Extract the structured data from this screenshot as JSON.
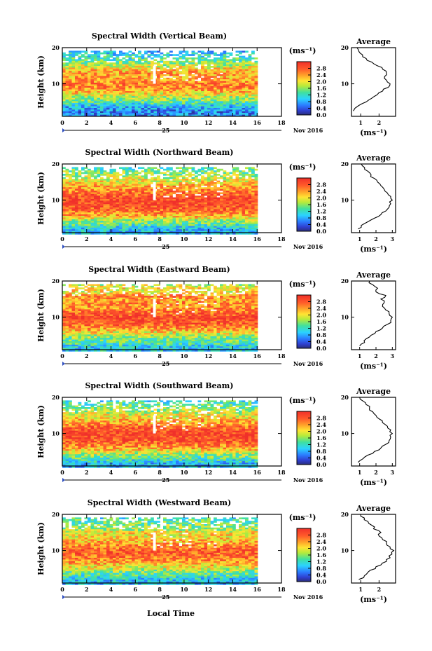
{
  "figure": {
    "xlabel": "Local Time",
    "day_label": "25",
    "month_year_label": "Nov 2016",
    "colorbar_unit": "(ms⁻¹)",
    "average_unit": "(ms⁻¹)",
    "average_title": "Average",
    "ylabel": "Height (km)"
  },
  "chart_data": [
    {
      "type": "heatmap",
      "title": "Spectral Width (Vertical Beam)",
      "ylabel": "Height (km)",
      "x_ticks": [
        0,
        2,
        4,
        6,
        8,
        10,
        12,
        14,
        16,
        18
      ],
      "x_range": [
        0,
        18
      ],
      "y_ticks": [
        10,
        20
      ],
      "y_range": [
        1,
        20
      ],
      "colorbar": {
        "ticks": [
          0.0,
          0.4,
          0.8,
          1.2,
          1.6,
          2.0,
          2.4,
          2.8
        ],
        "range": [
          0,
          3.2
        ]
      },
      "data_end_hour": 16,
      "average": {
        "title": "Average",
        "x_ticks": [
          1,
          2
        ],
        "x_range": [
          0.5,
          2.9
        ],
        "y_ticks": [
          10,
          20
        ],
        "height_km": [
          2.5,
          4,
          5,
          6,
          7,
          8,
          9,
          10,
          11,
          12,
          13,
          14,
          15,
          16,
          17,
          18,
          19,
          20
        ],
        "value_ms": [
          0.6,
          0.9,
          1.3,
          1.6,
          1.9,
          2.2,
          2.5,
          2.6,
          2.4,
          2.3,
          2.4,
          2.2,
          1.9,
          1.6,
          1.3,
          1.1,
          0.9,
          0.8
        ]
      }
    },
    {
      "type": "heatmap",
      "title": "Spectral Width (Northward Beam)",
      "ylabel": "Height (km)",
      "x_ticks": [
        0,
        2,
        4,
        6,
        8,
        10,
        12,
        14,
        16,
        18
      ],
      "x_range": [
        0,
        18
      ],
      "y_ticks": [
        10,
        20
      ],
      "y_range": [
        1,
        20
      ],
      "colorbar": {
        "ticks": [
          0.0,
          0.4,
          0.8,
          1.2,
          1.6,
          2.0,
          2.4,
          2.8
        ],
        "range": [
          0,
          3.2
        ]
      },
      "data_end_hour": 16,
      "average": {
        "title": "Average",
        "x_ticks": [
          1,
          2,
          3
        ],
        "x_range": [
          0.5,
          3.2
        ],
        "y_ticks": [
          10,
          20
        ],
        "height_km": [
          2,
          3,
          4,
          5,
          6,
          7,
          8,
          9,
          10,
          11,
          12,
          13,
          14,
          15,
          16,
          17,
          18,
          19,
          20
        ],
        "value_ms": [
          0.9,
          1.1,
          1.5,
          1.9,
          2.3,
          2.6,
          2.8,
          2.9,
          3.0,
          2.9,
          2.7,
          2.5,
          2.3,
          2.1,
          1.9,
          1.7,
          1.5,
          1.3,
          1.1
        ]
      }
    },
    {
      "type": "heatmap",
      "title": "Spectral Width (Eastward Beam)",
      "ylabel": "Height (km)",
      "x_ticks": [
        0,
        2,
        4,
        6,
        8,
        10,
        12,
        14,
        16,
        18
      ],
      "x_range": [
        0,
        18
      ],
      "y_ticks": [
        10,
        20
      ],
      "y_range": [
        1,
        20
      ],
      "colorbar": {
        "ticks": [
          0.0,
          0.4,
          0.8,
          1.2,
          1.6,
          2.0,
          2.4,
          2.8
        ],
        "range": [
          0,
          3.2
        ]
      },
      "data_end_hour": 16,
      "average": {
        "title": "Average",
        "x_ticks": [
          1,
          2,
          3
        ],
        "x_range": [
          0.5,
          3.2
        ],
        "y_ticks": [
          10,
          20
        ],
        "height_km": [
          2,
          3,
          4,
          5,
          6,
          7,
          8,
          9,
          10,
          11,
          12,
          13,
          14,
          15,
          16,
          17,
          18,
          19,
          20
        ],
        "value_ms": [
          1.0,
          1.3,
          1.4,
          1.7,
          2.0,
          2.4,
          2.7,
          2.9,
          3.0,
          2.8,
          2.6,
          2.4,
          2.5,
          2.3,
          2.6,
          2.0,
          2.1,
          1.8,
          1.6
        ]
      }
    },
    {
      "type": "heatmap",
      "title": "Spectral Width (Southward Beam)",
      "ylabel": "Height (km)",
      "x_ticks": [
        0,
        2,
        4,
        6,
        8,
        10,
        12,
        14,
        16,
        18
      ],
      "x_range": [
        0,
        18
      ],
      "y_ticks": [
        10,
        20
      ],
      "y_range": [
        1,
        20
      ],
      "colorbar": {
        "ticks": [
          0.0,
          0.4,
          0.8,
          1.2,
          1.6,
          2.0,
          2.4,
          2.8
        ],
        "range": [
          0,
          3.2
        ]
      },
      "data_end_hour": 16,
      "average": {
        "title": "Average",
        "x_ticks": [
          1,
          2,
          3
        ],
        "x_range": [
          0.5,
          3.2
        ],
        "y_ticks": [
          10,
          20
        ],
        "height_km": [
          2,
          3,
          4,
          5,
          6,
          7,
          8,
          9,
          10,
          11,
          12,
          13,
          14,
          15,
          16,
          17,
          18,
          19,
          20
        ],
        "value_ms": [
          0.9,
          1.2,
          1.5,
          1.9,
          2.3,
          2.6,
          2.8,
          2.9,
          3.0,
          2.9,
          2.7,
          2.4,
          2.2,
          2.0,
          1.8,
          1.6,
          1.4,
          1.2,
          1.0
        ]
      }
    },
    {
      "type": "heatmap",
      "title": "Spectral Width (Westward Beam)",
      "ylabel": "Height (km)",
      "xlabel": "Local Time",
      "x_ticks": [
        0,
        2,
        4,
        6,
        8,
        10,
        12,
        14,
        16,
        18
      ],
      "x_range": [
        0,
        18
      ],
      "y_ticks": [
        10,
        20
      ],
      "y_range": [
        1,
        20
      ],
      "colorbar": {
        "ticks": [
          0.0,
          0.4,
          0.8,
          1.2,
          1.6,
          2.0,
          2.4,
          2.8
        ],
        "range": [
          0,
          3.2
        ]
      },
      "data_end_hour": 16,
      "average": {
        "title": "Average",
        "x_ticks": [
          1,
          2
        ],
        "x_range": [
          0.5,
          2.9
        ],
        "y_ticks": [
          10,
          20
        ],
        "height_km": [
          2,
          3,
          4,
          5,
          6,
          7,
          8,
          9,
          10,
          11,
          12,
          13,
          14,
          15,
          16,
          17,
          18,
          19,
          20
        ],
        "value_ms": [
          0.9,
          1.2,
          1.4,
          1.8,
          2.1,
          2.4,
          2.6,
          2.7,
          2.8,
          2.6,
          2.4,
          2.2,
          2.0,
          2.1,
          1.7,
          1.6,
          1.4,
          1.2,
          1.0
        ]
      }
    }
  ]
}
